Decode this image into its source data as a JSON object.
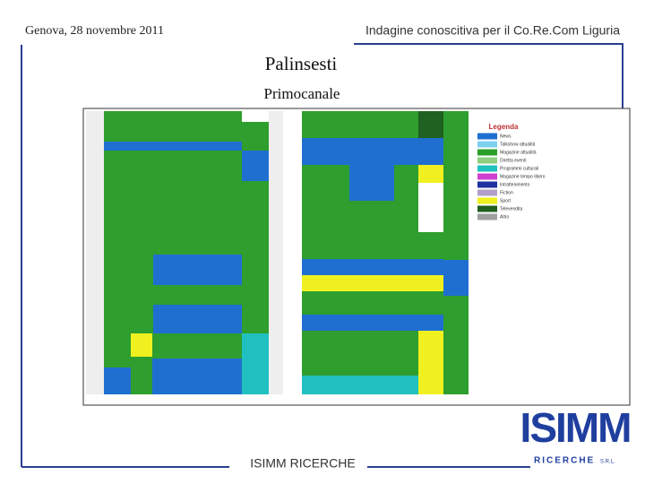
{
  "header": {
    "left": "Genova, 28 novembre 2011",
    "right": "Indagine conoscitiva per il Co.Re.Com Liguria"
  },
  "title": "Palinsesti",
  "subtitle": "Primocanale",
  "legend": {
    "title": "Legenda",
    "items": [
      {
        "label": "News",
        "color": "#1f6fd0"
      },
      {
        "label": "Talkshow attualità",
        "color": "#7fd0f0"
      },
      {
        "label": "Magazine attualità",
        "color": "#2aa02a"
      },
      {
        "label": "Diretta eventi",
        "color": "#8fd080"
      },
      {
        "label": "Programmi culturali",
        "color": "#20c0c0"
      },
      {
        "label": "Magazine tempo libero",
        "color": "#d040d0"
      },
      {
        "label": "Intrattenimento",
        "color": "#2030a0"
      },
      {
        "label": "Fiction",
        "color": "#b0a0c8"
      },
      {
        "label": "Sport",
        "color": "#f0f020"
      },
      {
        "label": "Televendita",
        "color": "#206020"
      },
      {
        "label": "Altro",
        "color": "#a0a0a0"
      }
    ]
  },
  "footer": "ISIMM RICERCHE",
  "logo": {
    "name": "ISIMM",
    "sub": "RICERCHE",
    "suffix": "S.R.L."
  }
}
